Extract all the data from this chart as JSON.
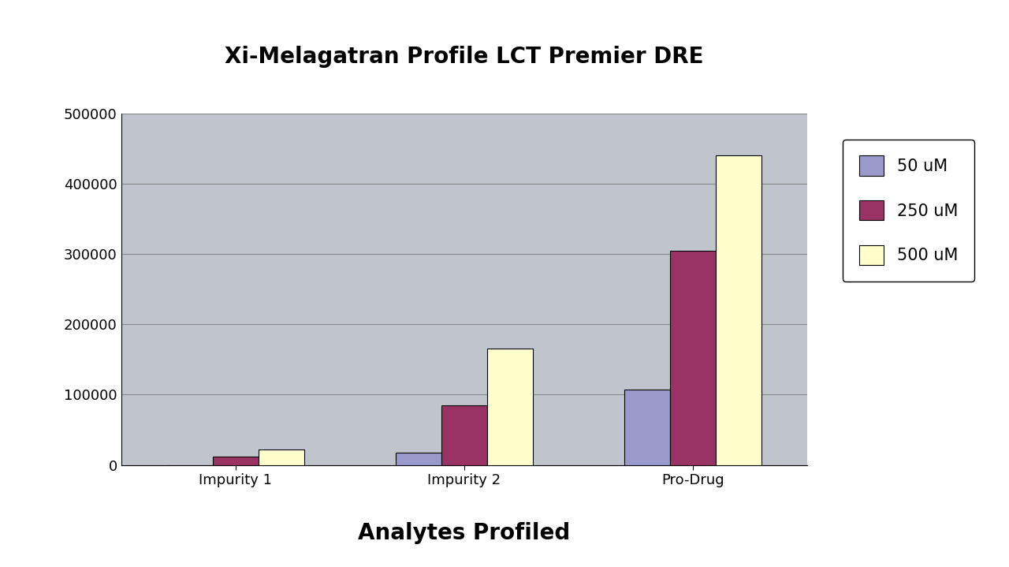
{
  "title": "Xi-Melagatran Profile LCT Premier DRE",
  "xlabel": "Analytes Profiled",
  "categories": [
    "Impurity 1",
    "Impurity 2",
    "Pro-Drug"
  ],
  "series": [
    {
      "label": "50 uM",
      "values": [
        0,
        18000,
        107000
      ],
      "color": "#9999cc"
    },
    {
      "label": "250 uM",
      "values": [
        12000,
        85000,
        305000
      ],
      "color": "#993366"
    },
    {
      "label": "500 uM",
      "values": [
        22000,
        165000,
        440000
      ],
      "color": "#ffffcc"
    }
  ],
  "ylim": [
    0,
    500000
  ],
  "yticks": [
    0,
    100000,
    200000,
    300000,
    400000,
    500000
  ],
  "background_color": "#ffffff",
  "plot_bg_color": "#c0c4cc",
  "grid_color": "#888888",
  "bar_width": 0.2,
  "title_fontsize": 20,
  "xlabel_fontsize": 20,
  "tick_fontsize": 13,
  "legend_fontsize": 15
}
